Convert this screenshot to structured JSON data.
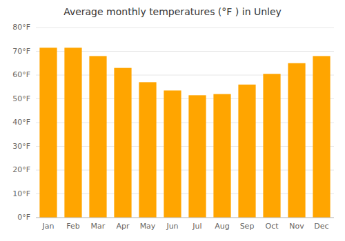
{
  "chart_data": {
    "type": "bar",
    "title": "Average monthly temperatures (°F ) in Unley",
    "categories": [
      "Jan",
      "Feb",
      "Mar",
      "Apr",
      "May",
      "Jun",
      "Jul",
      "Aug",
      "Sep",
      "Oct",
      "Nov",
      "Dec"
    ],
    "values": [
      71.5,
      71.5,
      68,
      63,
      57,
      53.5,
      51.5,
      52,
      56,
      60.5,
      65,
      68
    ],
    "color": "#FFA500",
    "ylim": [
      0,
      80
    ],
    "yticks": [
      {
        "value": 0,
        "label": "0°F"
      },
      {
        "value": 10,
        "label": "10°F"
      },
      {
        "value": 20,
        "label": "20°F"
      },
      {
        "value": 30,
        "label": "30°F"
      },
      {
        "value": 40,
        "label": "40°F"
      },
      {
        "value": 50,
        "label": "50°F"
      },
      {
        "value": 60,
        "label": "60°F"
      },
      {
        "value": 70,
        "label": "70°F"
      },
      {
        "value": 80,
        "label": "80°F"
      }
    ],
    "grid": true
  }
}
